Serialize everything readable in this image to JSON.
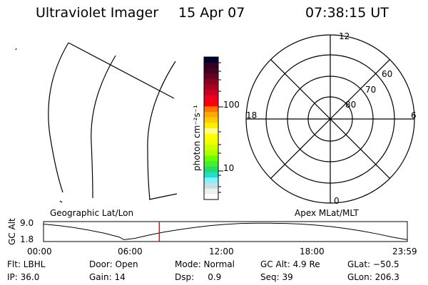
{
  "header": {
    "instrument": "Ultraviolet Imager",
    "date": "15 Apr 07",
    "time": "07:38:15 UT"
  },
  "colorbar": {
    "label": "photon cm⁻²s⁻¹",
    "ticks": [
      "100",
      "10"
    ],
    "colors": [
      "#000033",
      "#330022",
      "#440022",
      "#660022",
      "#880022",
      "#aa0022",
      "#cc0022",
      "#ee0022",
      "#ff0000",
      "#ff7700",
      "#ffaa00",
      "#ffcc00",
      "#ffee00",
      "#ffff88",
      "#ffff00",
      "#eeff00",
      "#ccff00",
      "#aaff00",
      "#66ff00",
      "#44ee33",
      "#22dd66",
      "#22ddcc",
      "#88eeff",
      "#ccdddd",
      "#e8f2ee",
      "#ffffff"
    ]
  },
  "panels": {
    "left_label": "Geographic Lat/Lon",
    "right_label": "Apex MLat/MLT"
  },
  "polar": {
    "mlt_labels": {
      "top": "12",
      "bottom": "0",
      "left": "18",
      "right": "6"
    },
    "lat_labels": [
      "80",
      "70",
      "60"
    ]
  },
  "chart_data": {
    "type": "line",
    "ylabel": "GC Alt",
    "yticks": [
      "9.0",
      "1.8"
    ],
    "xticks": [
      "00:00",
      "06:00",
      "12:00",
      "18:00",
      "23:59"
    ],
    "x": [
      0,
      1,
      2,
      3,
      4,
      5,
      5.3,
      6,
      7,
      8,
      9,
      10,
      11,
      12,
      13,
      14,
      15,
      16,
      17,
      18,
      19,
      20,
      21,
      22,
      23,
      23.98
    ],
    "y": [
      9.0,
      8.3,
      7.4,
      6.2,
      4.8,
      3.0,
      1.8,
      2.4,
      4.0,
      5.4,
      6.5,
      7.5,
      8.3,
      8.9,
      9.3,
      9.4,
      9.4,
      9.3,
      9.0,
      8.5,
      7.8,
      6.9,
      5.8,
      4.5,
      3.0,
      1.8
    ],
    "current_time": 7.64,
    "current_time_color": "#ff0000"
  },
  "status": {
    "row1": [
      "Flt: LBHL",
      "Door: Open",
      "Mode: Normal",
      "GC Alt: 4.9 Re",
      "GLat: −50.5"
    ],
    "row2": [
      "IP: 36.0",
      "Gain: 14",
      "Dsp:     0.9",
      "Seq: 39",
      "GLon: 206.3"
    ]
  }
}
